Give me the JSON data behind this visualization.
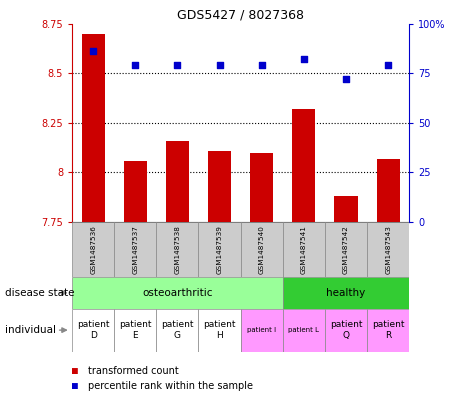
{
  "title": "GDS5427 / 8027368",
  "samples": [
    "GSM1487536",
    "GSM1487537",
    "GSM1487538",
    "GSM1487539",
    "GSM1487540",
    "GSM1487541",
    "GSM1487542",
    "GSM1487543"
  ],
  "red_values": [
    8.7,
    8.06,
    8.16,
    8.11,
    8.1,
    8.32,
    7.88,
    8.07
  ],
  "blue_values": [
    86,
    79,
    79,
    79,
    79,
    82,
    72,
    79
  ],
  "ylim_left": [
    7.75,
    8.75
  ],
  "ylim_right": [
    0,
    100
  ],
  "yticks_left": [
    7.75,
    8.0,
    8.25,
    8.5,
    8.75
  ],
  "ytick_labels_left": [
    "7.75",
    "8",
    "8.25",
    "8.5",
    "8.75"
  ],
  "yticks_right": [
    0,
    25,
    50,
    75,
    100
  ],
  "ytick_labels_right": [
    "0",
    "25",
    "50",
    "75",
    "100%"
  ],
  "disease_colors": {
    "osteoarthritic": "#99ff99",
    "healthy": "#33cc33"
  },
  "individual_labels": [
    "patient\nD",
    "patient\nE",
    "patient\nG",
    "patient\nH",
    "patient I",
    "patient L",
    "patient\nQ",
    "patient\nR"
  ],
  "individual_colors": [
    "#ffffff",
    "#ffffff",
    "#ffffff",
    "#ffffff",
    "#ff99ff",
    "#ff99ff",
    "#ff99ff",
    "#ff99ff"
  ],
  "individual_small": [
    false,
    false,
    false,
    false,
    true,
    true,
    false,
    false
  ],
  "bar_color": "#cc0000",
  "dot_color": "#0000cc",
  "bg_color": "#cccccc",
  "left_axis_color": "#cc0000",
  "right_axis_color": "#0000cc",
  "n_osteo": 5,
  "n_healthy": 3
}
